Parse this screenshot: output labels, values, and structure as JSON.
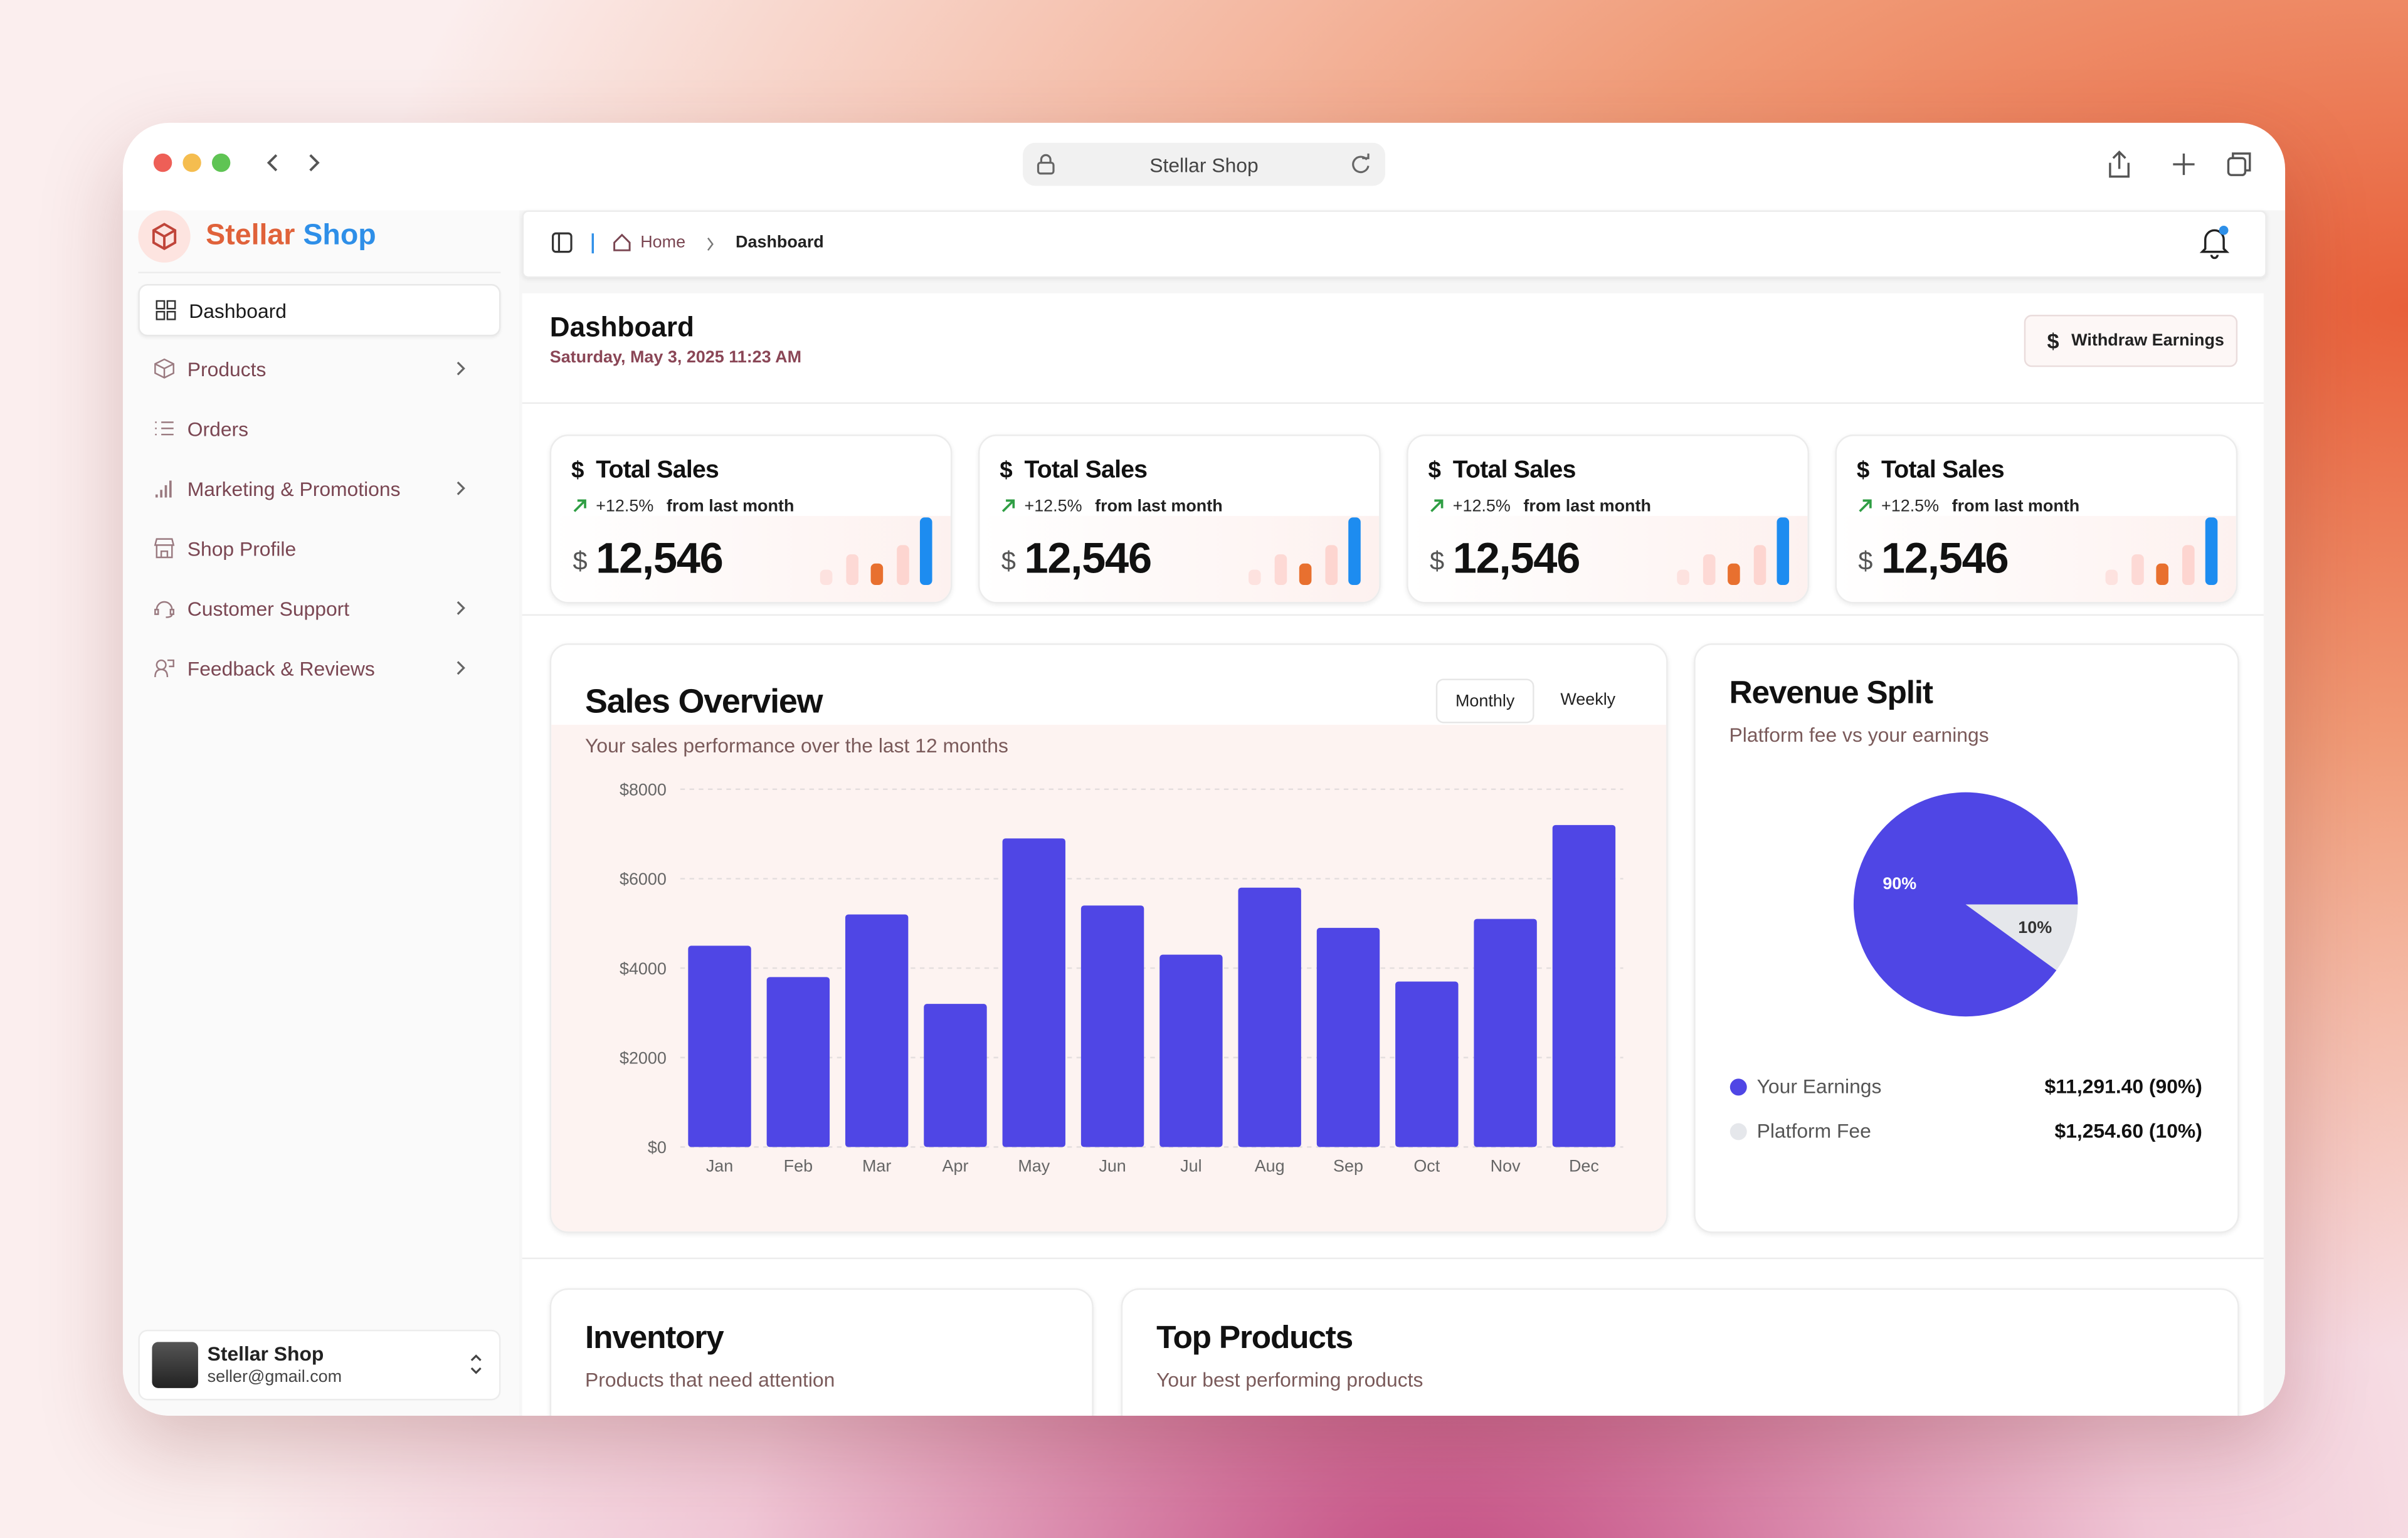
{
  "browser": {
    "address": "Stellar Shop"
  },
  "sidebar": {
    "brand_first": "Stellar",
    "brand_second": "Shop",
    "nav": [
      "Dashboard",
      "Products",
      "Orders",
      "Marketing & Promotions",
      "Shop Profile",
      "Customer Support",
      "Feedback & Reviews"
    ],
    "user": {
      "name": "Stellar Shop",
      "email": "seller@gmail.com"
    }
  },
  "breadcrumb": [
    "Home",
    "Dashboard"
  ],
  "header": {
    "title": "Dashboard",
    "date": "Saturday, May 3, 2025 11:23 AM",
    "button": "Withdraw Earnings"
  },
  "stats": [
    {
      "title": "Total Sales",
      "change": "+12.5%",
      "note": "from last month",
      "currency": "$",
      "value": "12,546"
    },
    {
      "title": "Total Sales",
      "change": "+12.5%",
      "note": "from last month",
      "currency": "$",
      "value": "12,546"
    },
    {
      "title": "Total Sales",
      "change": "+12.5%",
      "note": "from last month",
      "currency": "$",
      "value": "12,546"
    },
    {
      "title": "Total Sales",
      "change": "+12.5%",
      "note": "from last month",
      "currency": "$",
      "value": "12,546"
    }
  ],
  "chart_data": [
    {
      "type": "bar",
      "title": "Sales Overview",
      "subtitle": "Your sales performance over the last 12 months",
      "toggles": [
        "Monthly",
        "Weekly"
      ],
      "categories": [
        "Jan",
        "Feb",
        "Mar",
        "Apr",
        "May",
        "Jun",
        "Jul",
        "Aug",
        "Sep",
        "Oct",
        "Nov",
        "Dec"
      ],
      "values": [
        4500,
        3800,
        5200,
        3200,
        6900,
        5400,
        4300,
        5800,
        4900,
        3700,
        5100,
        7200
      ],
      "color": "#4f46e5",
      "ylim": [
        0,
        8000
      ],
      "yticks": [
        {
          "value": 0,
          "label": "$0"
        },
        {
          "value": 2000,
          "label": "$2000"
        },
        {
          "value": 4000,
          "label": "$4000"
        },
        {
          "value": 6000,
          "label": "$6000"
        },
        {
          "value": 8000,
          "label": "$8000"
        }
      ],
      "grid": true
    },
    {
      "type": "pie",
      "title": "Revenue Split",
      "subtitle": "Platform fee vs your earnings",
      "categories": [
        "Your Earnings",
        "Platform Fee"
      ],
      "values": [
        90,
        10
      ],
      "value_labels": [
        "90%",
        "10%"
      ],
      "colors": [
        "#4f46e5",
        "#e5e7eb"
      ],
      "amounts": [
        "$11,291.40 (90%)",
        "$1,254.60 (10%)"
      ]
    }
  ],
  "inventory": {
    "title": "Inventory",
    "subtitle": "Products that need attention"
  },
  "top_products": {
    "title": "Top Products",
    "subtitle": "Your best performing products"
  }
}
